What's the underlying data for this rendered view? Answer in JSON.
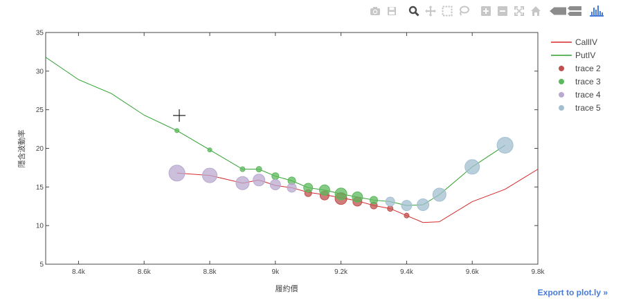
{
  "modebar": {
    "buttons": [
      {
        "name": "camera-icon",
        "color": "#c7c7c7"
      },
      {
        "name": "save-icon",
        "color": "#c7c7c7"
      },
      {
        "name": "zoom-icon",
        "color": "#4b4b4b"
      },
      {
        "name": "pan-icon",
        "color": "#c7c7c7"
      },
      {
        "name": "box-select-icon",
        "color": "#c7c7c7"
      },
      {
        "name": "lasso-select-icon",
        "color": "#c7c7c7"
      },
      {
        "name": "zoom-in-icon",
        "color": "#c7c7c7"
      },
      {
        "name": "zoom-out-icon",
        "color": "#c7c7c7"
      },
      {
        "name": "autoscale-icon",
        "color": "#c7c7c7"
      },
      {
        "name": "home-icon",
        "color": "#c7c7c7"
      },
      {
        "name": "hover-closest-icon",
        "color": "#8c8c8c"
      },
      {
        "name": "hover-compare-icon",
        "color": "#8c8c8c"
      },
      {
        "name": "plotly-logo-icon",
        "color": "#447adb"
      }
    ]
  },
  "export_label": "Export to plot.ly »",
  "chart_data": {
    "type": "scatter",
    "title": "",
    "xlabel": "履約價",
    "ylabel": "隱含波動率",
    "xlim": [
      8300,
      9800
    ],
    "ylim": [
      5,
      35
    ],
    "xticks": [
      8400,
      8600,
      8800,
      9000,
      9200,
      9400,
      9600,
      9800
    ],
    "xtick_labels": [
      "8.4k",
      "8.6k",
      "8.8k",
      "9k",
      "9.2k",
      "9.4k",
      "9.6k",
      "9.8k"
    ],
    "yticks": [
      5,
      10,
      15,
      20,
      25,
      30,
      35
    ],
    "ytick_labels": [
      "5",
      "10",
      "15",
      "20",
      "25",
      "30",
      "35"
    ],
    "grid": false,
    "legend_position": "top-right",
    "series": [
      {
        "name": "CallIV",
        "mode": "lines",
        "color": "#d62728",
        "x": [
          8700,
          8800,
          8900,
          8950,
          9000,
          9050,
          9100,
          9150,
          9200,
          9250,
          9300,
          9350,
          9400,
          9450,
          9500,
          9600,
          9700,
          9800
        ],
        "y": [
          16.8,
          16.5,
          15.5,
          15.9,
          15.2,
          14.9,
          14.3,
          14.0,
          13.6,
          13.2,
          12.6,
          12.2,
          11.3,
          10.4,
          10.5,
          13.1,
          14.7,
          17.3
        ]
      },
      {
        "name": "PutIV",
        "mode": "lines",
        "color": "#2ca02c",
        "x": [
          8300,
          8400,
          8500,
          8600,
          8700,
          8800,
          8900,
          8950,
          9000,
          9050,
          9100,
          9150,
          9200,
          9250,
          9300,
          9350,
          9400,
          9450,
          9500,
          9600,
          9700
        ],
        "y": [
          31.8,
          28.9,
          27.1,
          24.3,
          22.3,
          19.8,
          17.3,
          17.3,
          16.4,
          15.8,
          14.9,
          14.6,
          14.1,
          13.7,
          13.3,
          13.1,
          12.6,
          12.7,
          14.0,
          17.6,
          20.4
        ]
      },
      {
        "name": "trace 2",
        "mode": "markers",
        "color": "#c0504d",
        "x": [
          9100,
          9150,
          9200,
          9250,
          9300,
          9350,
          9400
        ],
        "y": [
          14.2,
          13.9,
          13.5,
          13.1,
          12.6,
          12.2,
          11.3
        ],
        "sizes": [
          7,
          10,
          14,
          10,
          7,
          5,
          4
        ]
      },
      {
        "name": "trace 3",
        "mode": "markers",
        "color": "#5cb85c",
        "x": [
          8700,
          8800,
          8900,
          8950,
          9000,
          9050,
          9100,
          9150,
          9200,
          9250,
          9300
        ],
        "y": [
          22.3,
          19.8,
          17.3,
          17.3,
          16.4,
          15.8,
          14.9,
          14.6,
          14.1,
          13.7,
          13.3
        ],
        "sizes": [
          3,
          3,
          4,
          5,
          7,
          8,
          10,
          12,
          14,
          12,
          8
        ]
      },
      {
        "name": "trace 4",
        "mode": "markers",
        "color": "#b9a9cf",
        "x": [
          8700,
          8800,
          8900,
          8950,
          9000,
          9050
        ],
        "y": [
          16.8,
          16.5,
          15.5,
          15.9,
          15.3,
          14.9
        ],
        "sizes": [
          20,
          18,
          16,
          14,
          12,
          10
        ]
      },
      {
        "name": "trace 5",
        "mode": "markers",
        "color": "#a3bfd0",
        "x": [
          9350,
          9400,
          9450,
          9500,
          9600,
          9700
        ],
        "y": [
          13.1,
          12.6,
          12.7,
          14.0,
          17.6,
          20.4
        ],
        "sizes": [
          10,
          12,
          14,
          16,
          18,
          20
        ]
      }
    ]
  }
}
